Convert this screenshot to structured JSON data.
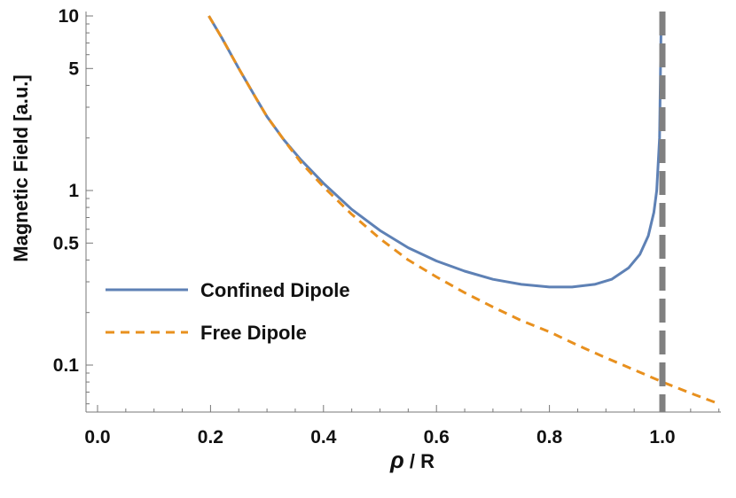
{
  "chart_data": {
    "type": "line",
    "title": "",
    "xlabel_symbol": "ρ",
    "xlabel_rest": " / R",
    "ylabel": "Magnetic Field [a.u.]",
    "xlim": [
      -0.02,
      1.1
    ],
    "ylim": [
      0.05,
      10
    ],
    "yscale": "log",
    "grid": false,
    "legend_position": "center-left",
    "x_ticks": [
      {
        "value": 0.0,
        "label": "0.0"
      },
      {
        "value": 0.2,
        "label": "0.2"
      },
      {
        "value": 0.4,
        "label": "0.4"
      },
      {
        "value": 0.6,
        "label": "0.6"
      },
      {
        "value": 0.8,
        "label": "0.8"
      },
      {
        "value": 1.0,
        "label": "1.0"
      }
    ],
    "x_minor_step": 0.05,
    "y_ticks": [
      {
        "value": 10,
        "label": "10"
      },
      {
        "value": 5,
        "label": "5"
      },
      {
        "value": 1,
        "label": "1"
      },
      {
        "value": 0.5,
        "label": "0.5"
      },
      {
        "value": 0.1,
        "label": "0.1"
      }
    ],
    "y_minor": [
      0.06,
      0.07,
      0.08,
      0.09,
      0.2,
      0.3,
      0.4,
      0.6,
      0.7,
      0.8,
      0.9,
      2,
      3,
      4,
      6,
      7,
      8,
      9
    ],
    "series": [
      {
        "name": "Confined Dipole",
        "color": "#5E81B5",
        "style": "solid",
        "x": [
          0.197,
          0.22,
          0.25,
          0.28,
          0.3,
          0.33,
          0.36,
          0.4,
          0.45,
          0.5,
          0.55,
          0.6,
          0.65,
          0.7,
          0.75,
          0.8,
          0.84,
          0.88,
          0.91,
          0.94,
          0.96,
          0.975,
          0.985,
          0.99,
          0.995,
          0.998
        ],
        "y": [
          10.0,
          7.5,
          5.0,
          3.4,
          2.65,
          1.95,
          1.5,
          1.1,
          0.78,
          0.59,
          0.47,
          0.395,
          0.345,
          0.31,
          0.29,
          0.28,
          0.28,
          0.29,
          0.31,
          0.36,
          0.43,
          0.55,
          0.75,
          1.0,
          2.0,
          10.0
        ]
      },
      {
        "name": "Free Dipole",
        "color": "#E8901E",
        "style": "dashed",
        "x": [
          0.197,
          0.22,
          0.25,
          0.28,
          0.3,
          0.33,
          0.36,
          0.4,
          0.45,
          0.5,
          0.55,
          0.6,
          0.65,
          0.7,
          0.75,
          0.8,
          0.85,
          0.9,
          0.95,
          1.0,
          1.05,
          1.1
        ],
        "y": [
          10.0,
          7.5,
          5.0,
          3.4,
          2.65,
          1.95,
          1.45,
          1.05,
          0.73,
          0.53,
          0.4,
          0.32,
          0.26,
          0.215,
          0.18,
          0.155,
          0.13,
          0.11,
          0.094,
          0.08,
          0.069,
          0.06
        ]
      }
    ],
    "reference_line": {
      "x": 1.0,
      "color": "#808080",
      "style": "dashed"
    }
  }
}
